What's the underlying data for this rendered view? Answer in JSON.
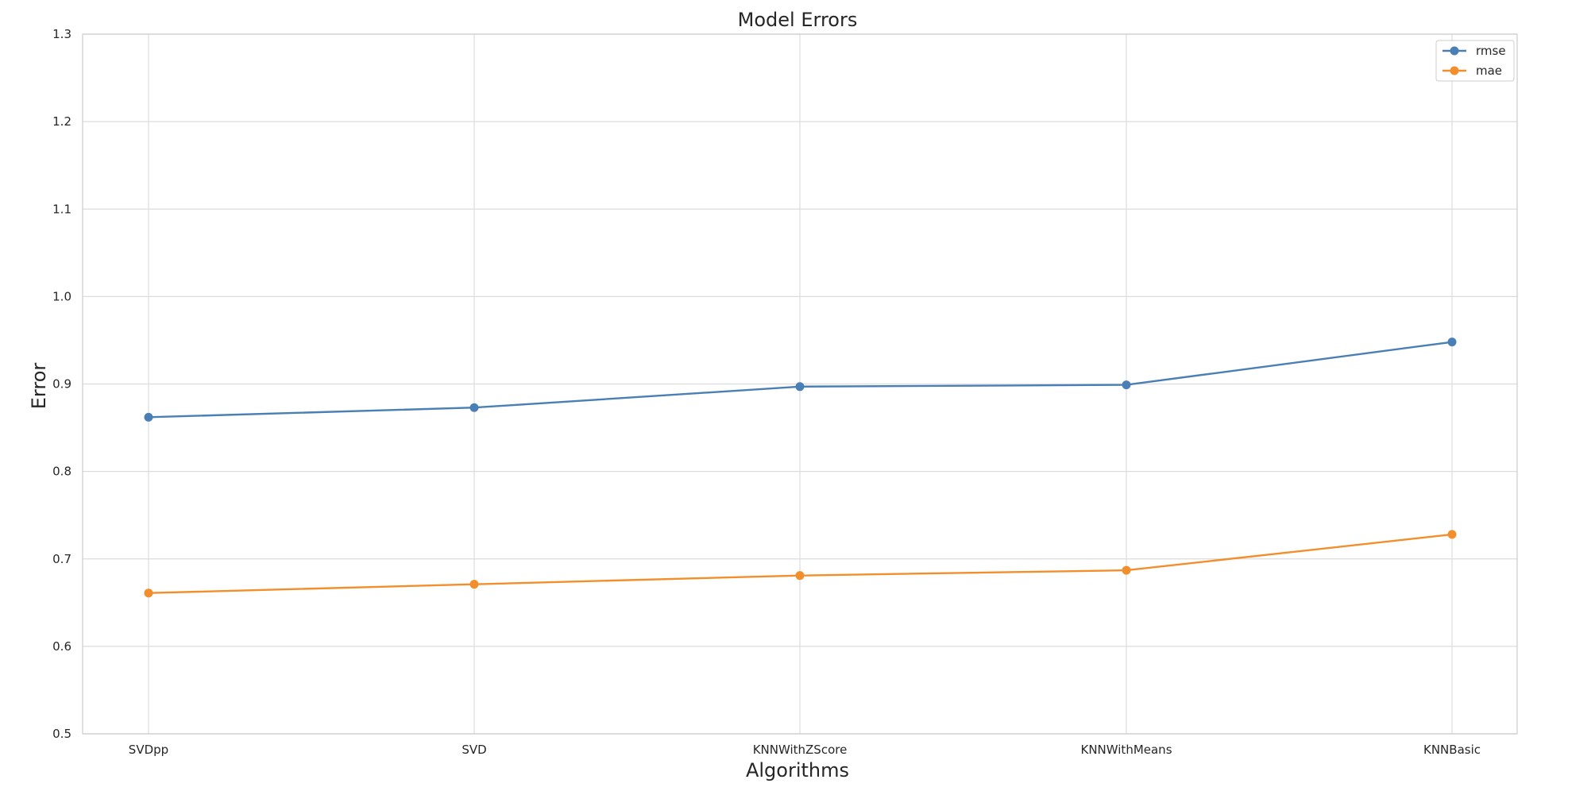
{
  "chart_data": {
    "type": "line",
    "title": "Model Errors",
    "xlabel": "Algorithms",
    "ylabel": "Error",
    "categories": [
      "SVDpp",
      "SVD",
      "KNNWithZScore",
      "KNNWithMeans",
      "KNNBasic"
    ],
    "ylim": [
      0.5,
      1.3
    ],
    "yticks": [
      "0.5",
      "0.6",
      "0.7",
      "0.8",
      "0.9",
      "1.0",
      "1.1",
      "1.2",
      "1.3"
    ],
    "grid": true,
    "legend_position": "top-right",
    "series": [
      {
        "name": "rmse",
        "color": "#4a7fb5",
        "marker": "circle",
        "values": [
          0.862,
          0.873,
          0.897,
          0.899,
          0.948
        ]
      },
      {
        "name": "mae",
        "color": "#f28e2b",
        "marker": "circle",
        "values": [
          0.661,
          0.671,
          0.681,
          0.687,
          0.728
        ]
      }
    ]
  }
}
